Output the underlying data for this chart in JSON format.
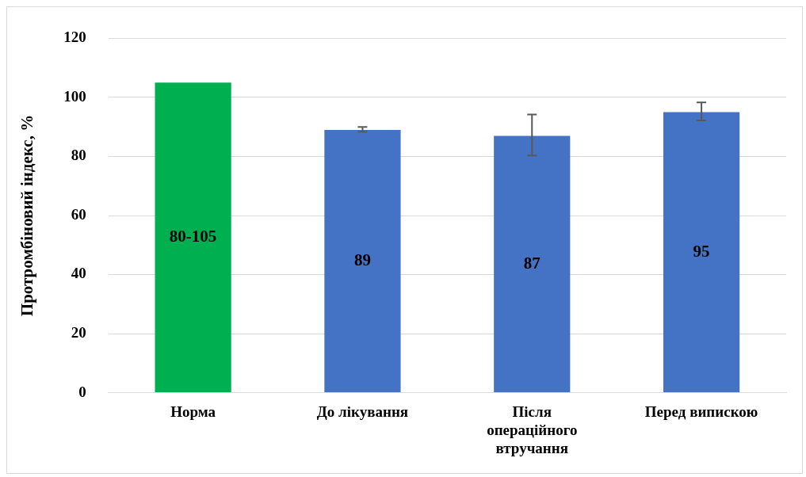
{
  "chart_data": {
    "type": "bar",
    "ylabel": "Протромбіновий індекс, %",
    "categories": [
      "Норма",
      "До лікування",
      "Після операційного втручання",
      "Перед випискою"
    ],
    "values": [
      105,
      89,
      87,
      95
    ],
    "colors": [
      "#00b050",
      "#4472c4",
      "#4472c4",
      "#4472c4"
    ],
    "errors": [
      null,
      [
        88.4,
        90
      ],
      [
        80.3,
        94.2
      ],
      [
        92.2,
        98.3
      ]
    ],
    "value_labels": [
      "80-105",
      "89",
      "87",
      "95"
    ],
    "ylim": [
      0,
      120
    ],
    "yticks": [
      0,
      20,
      40,
      60,
      80,
      100,
      120
    ],
    "grid": "y",
    "legend": false
  }
}
